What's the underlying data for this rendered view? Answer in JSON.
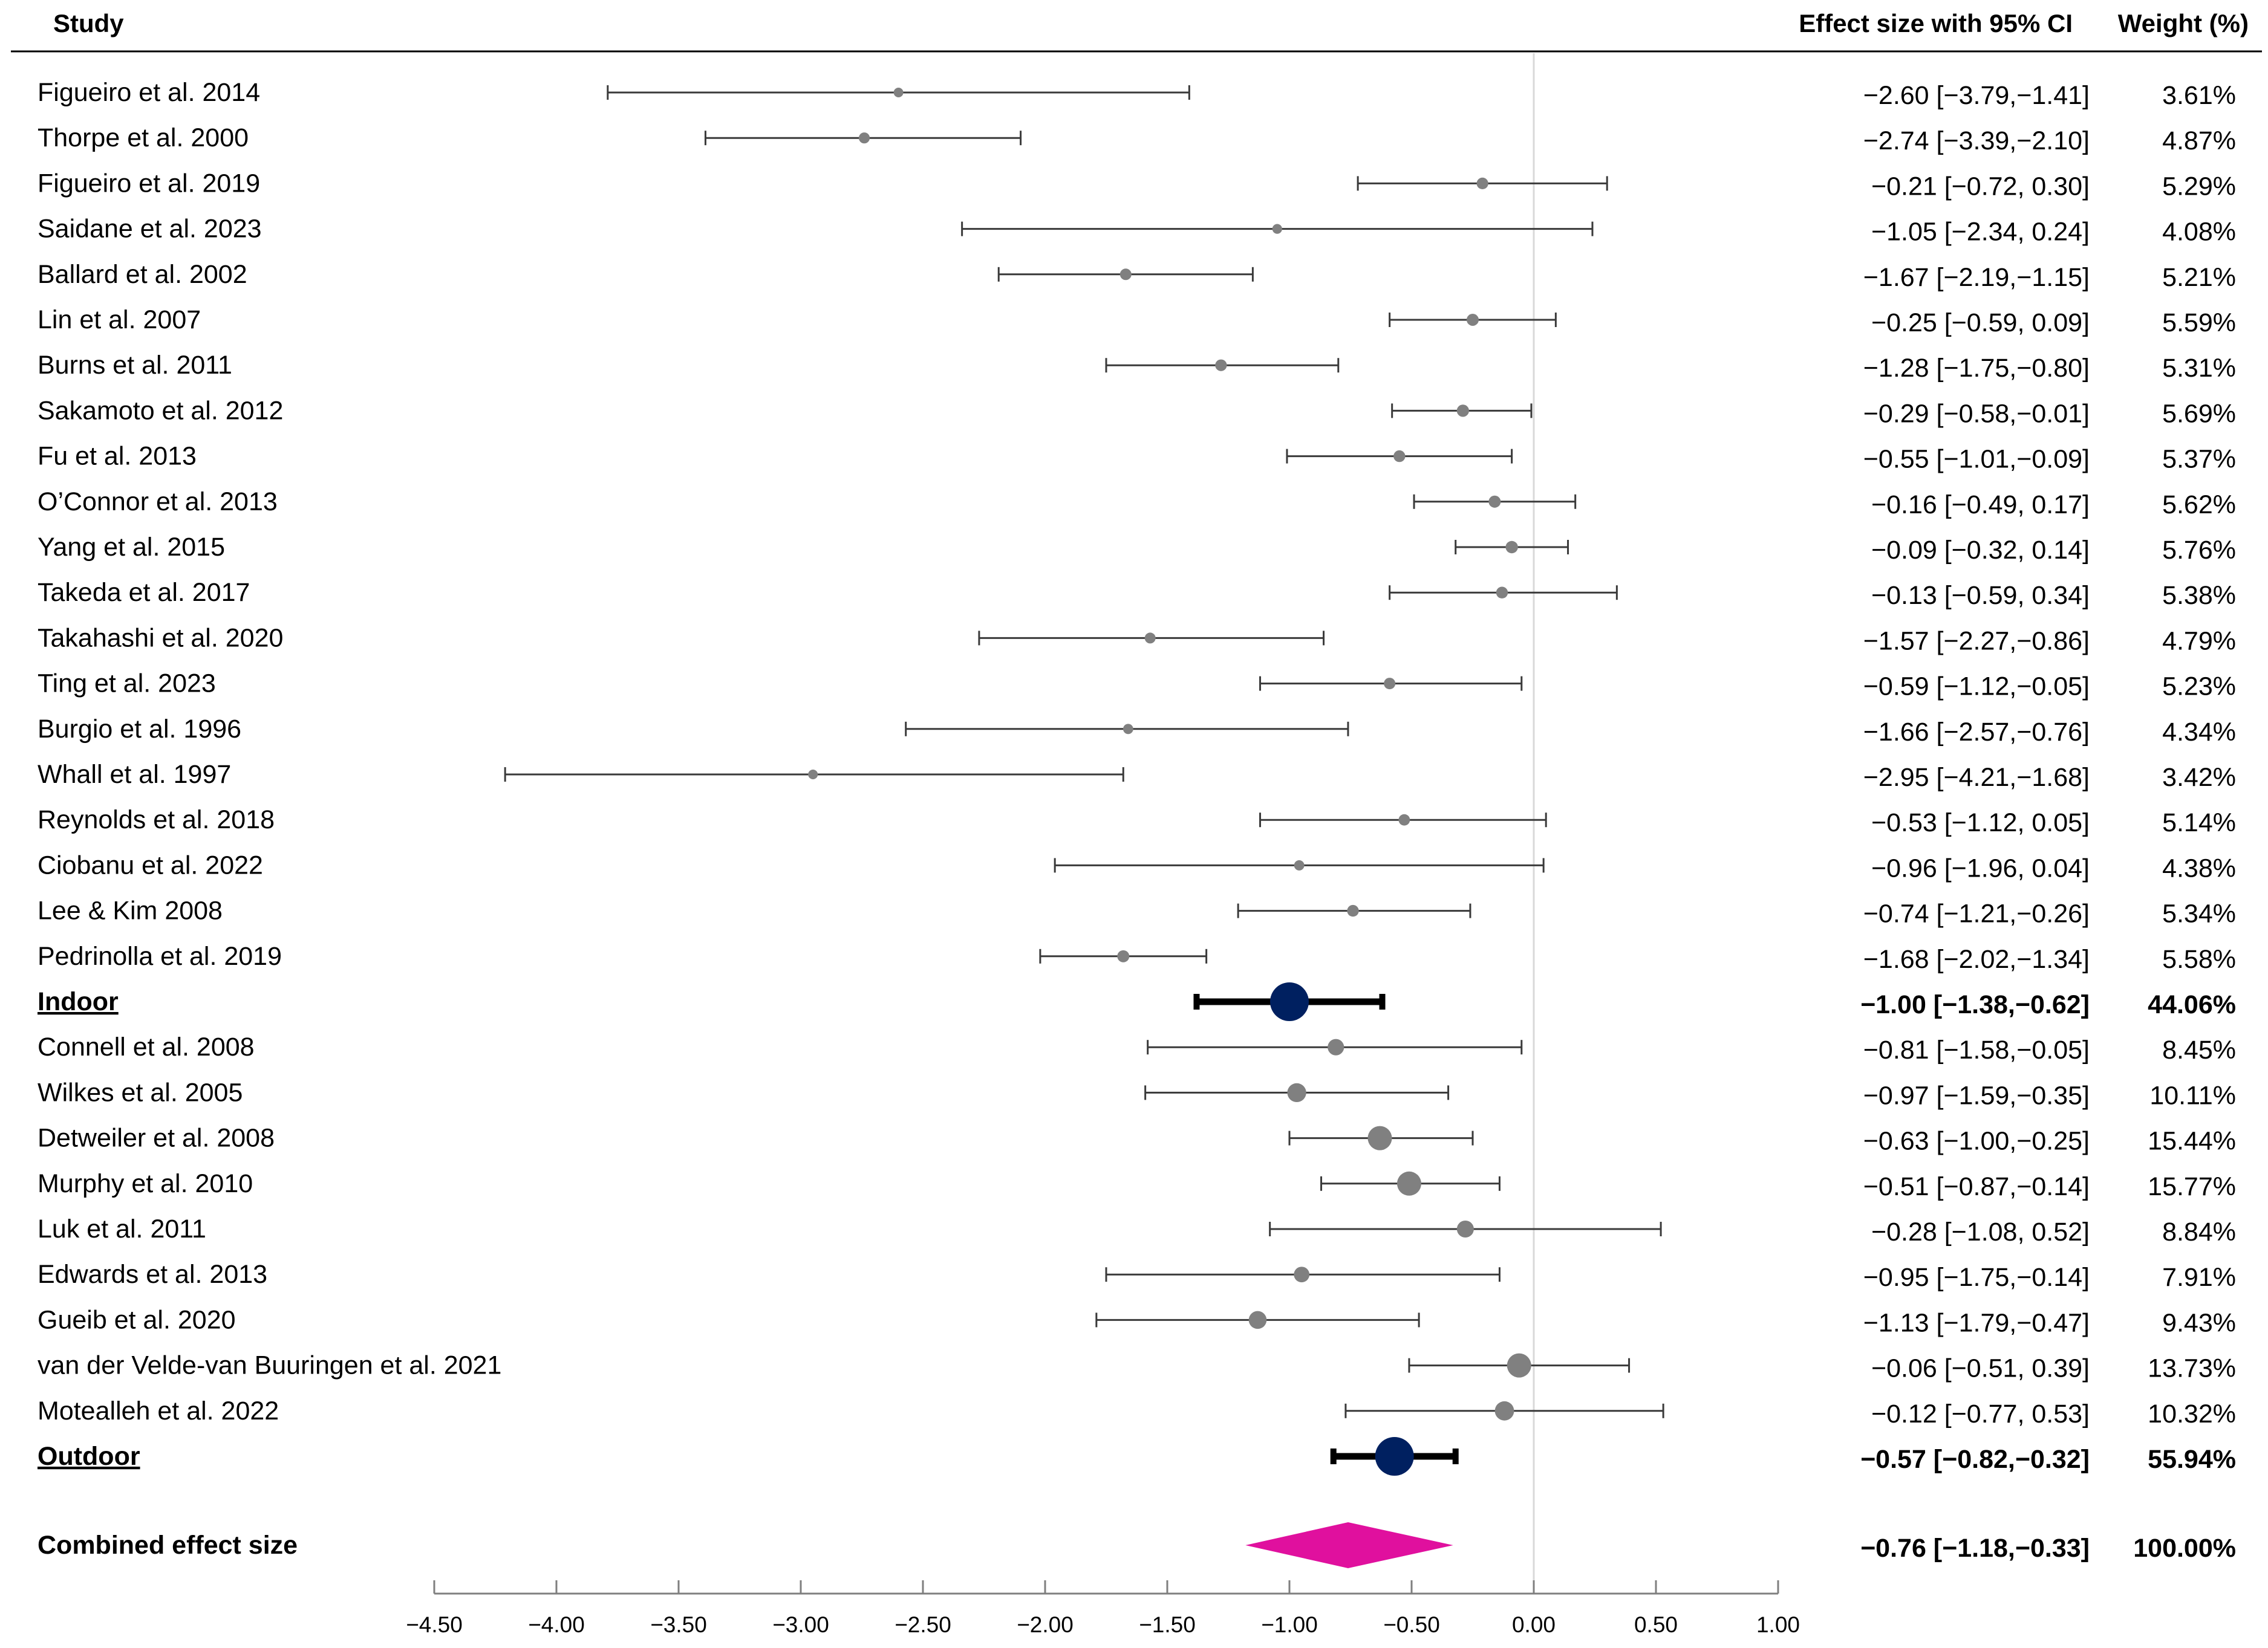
{
  "chart_data": {
    "type": "forest",
    "headers": {
      "study": "Study",
      "effect": "Effect size with 95% CI",
      "weight": "Weight (%)"
    },
    "xlim": [
      -4.5,
      1.0
    ],
    "ticks": [
      "−4.50",
      "−4.00",
      "−3.50",
      "−3.00",
      "−2.50",
      "−2.00",
      "−1.50",
      "−1.00",
      "−0.50",
      "0.00",
      "0.50",
      "1.00"
    ],
    "tick_values": [
      -4.5,
      -4.0,
      -3.5,
      -3.0,
      -2.5,
      -2.0,
      -1.5,
      -1.0,
      -0.5,
      0.0,
      0.5,
      1.0
    ],
    "colors": {
      "study": "#808080",
      "subgroup": "#002060",
      "combined": "#e0109e"
    },
    "rows": [
      {
        "label": "Figueiro et al. 2014",
        "est": -2.6,
        "lo": -3.79,
        "hi": -1.41,
        "ci_text": "−2.60 [−3.79,−1.41]",
        "weight": "3.61%",
        "kind": "study"
      },
      {
        "label": "Thorpe et al. 2000",
        "est": -2.74,
        "lo": -3.39,
        "hi": -2.1,
        "ci_text": "−2.74 [−3.39,−2.10]",
        "weight": "4.87%",
        "kind": "study"
      },
      {
        "label": "Figueiro et al. 2019",
        "est": -0.21,
        "lo": -0.72,
        "hi": 0.3,
        "ci_text": "−0.21 [−0.72, 0.30]",
        "weight": "5.29%",
        "kind": "study"
      },
      {
        "label": "Saidane et al. 2023",
        "est": -1.05,
        "lo": -2.34,
        "hi": 0.24,
        "ci_text": "−1.05 [−2.34, 0.24]",
        "weight": "4.08%",
        "kind": "study"
      },
      {
        "label": "Ballard et al. 2002",
        "est": -1.67,
        "lo": -2.19,
        "hi": -1.15,
        "ci_text": "−1.67 [−2.19,−1.15]",
        "weight": "5.21%",
        "kind": "study"
      },
      {
        "label": "Lin et al. 2007",
        "est": -0.25,
        "lo": -0.59,
        "hi": 0.09,
        "ci_text": "−0.25 [−0.59, 0.09]",
        "weight": "5.59%",
        "kind": "study"
      },
      {
        "label": "Burns et al. 2011",
        "est": -1.28,
        "lo": -1.75,
        "hi": -0.8,
        "ci_text": "−1.28 [−1.75,−0.80]",
        "weight": "5.31%",
        "kind": "study"
      },
      {
        "label": "Sakamoto et al. 2012",
        "est": -0.29,
        "lo": -0.58,
        "hi": -0.01,
        "ci_text": "−0.29 [−0.58,−0.01]",
        "weight": "5.69%",
        "kind": "study"
      },
      {
        "label": "Fu et al. 2013",
        "est": -0.55,
        "lo": -1.01,
        "hi": -0.09,
        "ci_text": "−0.55 [−1.01,−0.09]",
        "weight": "5.37%",
        "kind": "study"
      },
      {
        "label": "O’Connor et al. 2013",
        "est": -0.16,
        "lo": -0.49,
        "hi": 0.17,
        "ci_text": "−0.16 [−0.49, 0.17]",
        "weight": "5.62%",
        "kind": "study"
      },
      {
        "label": "Yang et al. 2015",
        "est": -0.09,
        "lo": -0.32,
        "hi": 0.14,
        "ci_text": "−0.09 [−0.32, 0.14]",
        "weight": "5.76%",
        "kind": "study"
      },
      {
        "label": "Takeda et al. 2017",
        "est": -0.13,
        "lo": -0.59,
        "hi": 0.34,
        "ci_text": "−0.13 [−0.59, 0.34]",
        "weight": "5.38%",
        "kind": "study"
      },
      {
        "label": "Takahashi et al. 2020",
        "est": -1.57,
        "lo": -2.27,
        "hi": -0.86,
        "ci_text": "−1.57 [−2.27,−0.86]",
        "weight": "4.79%",
        "kind": "study"
      },
      {
        "label": "Ting et al. 2023",
        "est": -0.59,
        "lo": -1.12,
        "hi": -0.05,
        "ci_text": "−0.59 [−1.12,−0.05]",
        "weight": "5.23%",
        "kind": "study"
      },
      {
        "label": "Burgio et al. 1996",
        "est": -1.66,
        "lo": -2.57,
        "hi": -0.76,
        "ci_text": "−1.66 [−2.57,−0.76]",
        "weight": "4.34%",
        "kind": "study"
      },
      {
        "label": "Whall et al. 1997",
        "est": -2.95,
        "lo": -4.21,
        "hi": -1.68,
        "ci_text": "−2.95 [−4.21,−1.68]",
        "weight": "3.42%",
        "kind": "study"
      },
      {
        "label": "Reynolds et al. 2018",
        "est": -0.53,
        "lo": -1.12,
        "hi": 0.05,
        "ci_text": "−0.53 [−1.12, 0.05]",
        "weight": "5.14%",
        "kind": "study"
      },
      {
        "label": "Ciobanu et al. 2022",
        "est": -0.96,
        "lo": -1.96,
        "hi": 0.04,
        "ci_text": "−0.96 [−1.96, 0.04]",
        "weight": "4.38%",
        "kind": "study"
      },
      {
        "label": "Lee & Kim 2008",
        "est": -0.74,
        "lo": -1.21,
        "hi": -0.26,
        "ci_text": "−0.74 [−1.21,−0.26]",
        "weight": "5.34%",
        "kind": "study"
      },
      {
        "label": "Pedrinolla et al. 2019",
        "est": -1.68,
        "lo": -2.02,
        "hi": -1.34,
        "ci_text": "−1.68 [−2.02,−1.34]",
        "weight": "5.58%",
        "kind": "study"
      },
      {
        "label": "Indoor",
        "est": -1.0,
        "lo": -1.38,
        "hi": -0.62,
        "ci_text": "−1.00 [−1.38,−0.62]",
        "weight": "44.06%",
        "kind": "subgroup"
      },
      {
        "label": "Connell et al. 2008",
        "est": -0.81,
        "lo": -1.58,
        "hi": -0.05,
        "ci_text": "−0.81 [−1.58,−0.05]",
        "weight": "8.45%",
        "kind": "study"
      },
      {
        "label": "Wilkes et al. 2005",
        "est": -0.97,
        "lo": -1.59,
        "hi": -0.35,
        "ci_text": "−0.97 [−1.59,−0.35]",
        "weight": "10.11%",
        "kind": "study"
      },
      {
        "label": "Detweiler et al. 2008",
        "est": -0.63,
        "lo": -1.0,
        "hi": -0.25,
        "ci_text": "−0.63 [−1.00,−0.25]",
        "weight": "15.44%",
        "kind": "study"
      },
      {
        "label": "Murphy et al. 2010",
        "est": -0.51,
        "lo": -0.87,
        "hi": -0.14,
        "ci_text": "−0.51 [−0.87,−0.14]",
        "weight": "15.77%",
        "kind": "study"
      },
      {
        "label": "Luk et al. 2011",
        "est": -0.28,
        "lo": -1.08,
        "hi": 0.52,
        "ci_text": "−0.28 [−1.08, 0.52]",
        "weight": "8.84%",
        "kind": "study"
      },
      {
        "label": "Edwards et al. 2013",
        "est": -0.95,
        "lo": -1.75,
        "hi": -0.14,
        "ci_text": "−0.95 [−1.75,−0.14]",
        "weight": "7.91%",
        "kind": "study"
      },
      {
        "label": "Gueib et al. 2020",
        "est": -1.13,
        "lo": -1.79,
        "hi": -0.47,
        "ci_text": "−1.13 [−1.79,−0.47]",
        "weight": "9.43%",
        "kind": "study"
      },
      {
        "label": "van der Velde-van Buuringen et al. 2021",
        "est": -0.06,
        "lo": -0.51,
        "hi": 0.39,
        "ci_text": "−0.06 [−0.51, 0.39]",
        "weight": "13.73%",
        "kind": "study"
      },
      {
        "label": "Motealleh et al.  2022",
        "est": -0.12,
        "lo": -0.77,
        "hi": 0.53,
        "ci_text": "−0.12 [−0.77, 0.53]",
        "weight": "10.32%",
        "kind": "study"
      },
      {
        "label": "Outdoor",
        "est": -0.57,
        "lo": -0.82,
        "hi": -0.32,
        "ci_text": "−0.57 [−0.82,−0.32]",
        "weight": "55.94%",
        "kind": "subgroup"
      },
      {
        "label": "Combined effect size",
        "est": -0.76,
        "lo": -1.18,
        "hi": -0.33,
        "ci_text": "−0.76 [−1.18,−0.33]",
        "weight": "100.00%",
        "kind": "combined"
      }
    ]
  }
}
